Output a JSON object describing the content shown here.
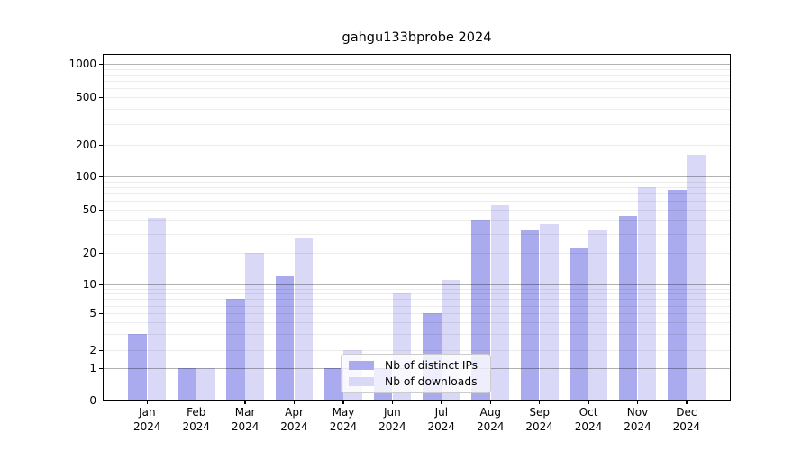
{
  "chart_data": {
    "type": "bar",
    "title": "gahgu133bprobe 2024",
    "categories": [
      "Jan",
      "Feb",
      "Mar",
      "Apr",
      "May",
      "Jun",
      "Jul",
      "Aug",
      "Sep",
      "Oct",
      "Nov",
      "Dec"
    ],
    "category_year": "2024",
    "series": [
      {
        "name": "Nb of distinct IPs",
        "color": "#aaaaee",
        "values": [
          3,
          1,
          7,
          12,
          1,
          1,
          5,
          40,
          32,
          22,
          44,
          76
        ]
      },
      {
        "name": "Nb of downloads",
        "color": "#d9d9f7",
        "values": [
          42,
          1,
          20,
          27,
          2,
          8,
          11,
          55,
          37,
          32,
          80,
          160
        ]
      }
    ],
    "y_ticks": [
      0,
      1,
      2,
      5,
      10,
      20,
      50,
      100,
      200,
      500,
      1000
    ],
    "ylim": [
      0,
      1400
    ],
    "yscale": "log-like with linear 0-1 segment",
    "grid": "horizontal, minor light lines each decade, darker lines at 1/10/100/1000",
    "legend_position": "lower center inside plot"
  },
  "legend": {
    "items": [
      {
        "label": "Nb of distinct IPs"
      },
      {
        "label": "Nb of downloads"
      }
    ]
  },
  "colors": {
    "distinct_ips": "#aaaaee",
    "downloads": "#d9d9f7",
    "major_grid": "#b3b3b3",
    "minor_grid": "#ececec",
    "spine": "#000000"
  }
}
